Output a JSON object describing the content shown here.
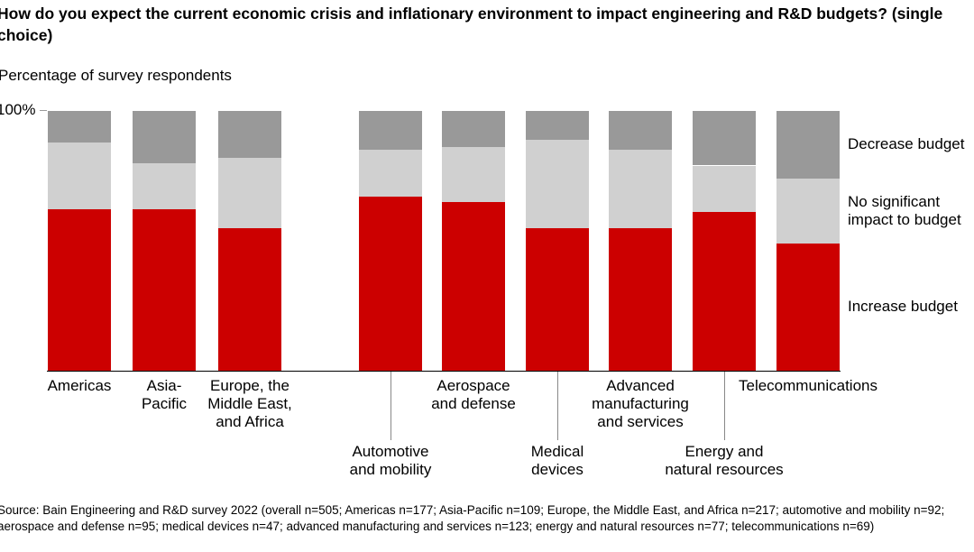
{
  "chart_data": {
    "type": "bar",
    "stacked": true,
    "title": "How do you expect the current economic crisis and inflationary environment to impact engineering and R&D budgets? (single choice)",
    "ylabel": "Percentage of survey respondents",
    "ylim": [
      0,
      100
    ],
    "yticks": [
      "100%"
    ],
    "categories": [
      "Americas",
      "Asia-Pacific",
      "Europe, the Middle East, and Africa",
      "Automotive and mobility",
      "Aerospace and defense",
      "Medical devices",
      "Advanced manufacturing and services",
      "Energy and natural resources",
      "Telecommunications"
    ],
    "category_lines": [
      [
        "Americas"
      ],
      [
        "Asia-",
        "Pacific"
      ],
      [
        "Europe, the",
        "Middle East,",
        "and Africa"
      ],
      [
        "Automotive",
        "and mobility"
      ],
      [
        "Aerospace",
        "and defense"
      ],
      [
        "Medical",
        "devices"
      ],
      [
        "Advanced",
        "manufacturing",
        "and services"
      ],
      [
        "Energy and",
        "natural resources"
      ],
      [
        "Telecommunications"
      ]
    ],
    "series": [
      {
        "name": "Increase budget",
        "color": "#cc0000",
        "values": [
          62,
          62,
          55,
          67,
          65,
          55,
          55,
          61,
          49
        ]
      },
      {
        "name": "No significant impact to budget",
        "color": "#d0d0d0",
        "values": [
          26,
          18,
          27,
          18,
          21,
          34,
          30,
          18,
          25
        ]
      },
      {
        "name": "Decrease budget",
        "color": "#999999",
        "values": [
          12,
          20,
          18,
          15,
          14,
          11,
          15,
          21,
          26
        ]
      }
    ],
    "legend_lines": [
      [
        "Increase budget"
      ],
      [
        "No significant",
        "impact to budget"
      ],
      [
        "Decrease budget"
      ]
    ],
    "legend_position": "right",
    "grid": false
  },
  "source": "Source: Bain Engineering and R&D survey 2022 (overall n=505; Americas n=177; Asia-Pacific n=109; Europe, the Middle East, and Africa n=217; automotive and mobility n=92; aerospace and defense n=95; medical devices n=47; advanced manufacturing and services n=123; energy and natural resources n=77; telecommunications n=69)"
}
